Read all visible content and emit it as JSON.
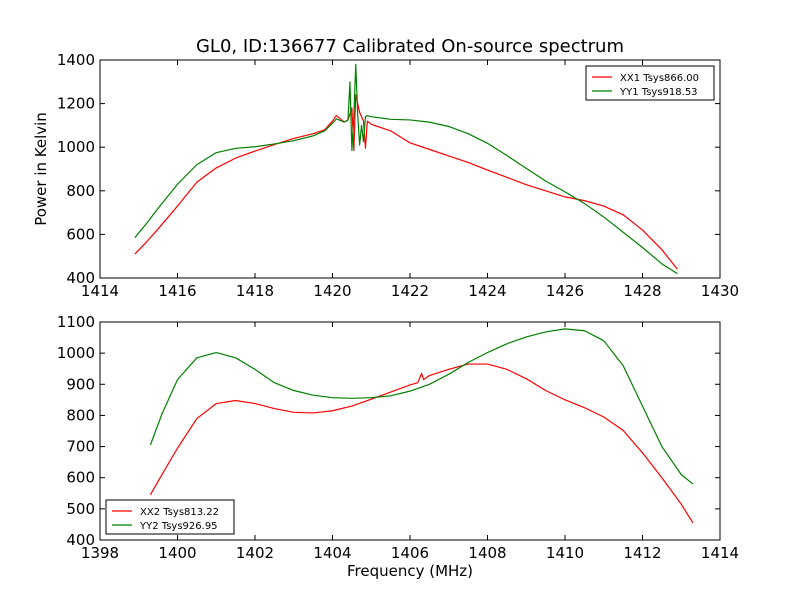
{
  "chart_data": [
    {
      "type": "line",
      "title": "GL0, ID:136677 Calibrated On-source spectrum",
      "xlabel": "",
      "ylabel": "Power in Kelvin",
      "xlim": [
        1414,
        1430
      ],
      "ylim": [
        400,
        1400
      ],
      "xticks": [
        1414,
        1416,
        1418,
        1420,
        1422,
        1424,
        1426,
        1428,
        1430
      ],
      "yticks": [
        400,
        600,
        800,
        1000,
        1200,
        1400
      ],
      "grid": false,
      "legend_position": "top-right",
      "series": [
        {
          "name": "XX1 Tsys866.00",
          "color": "#ff0000",
          "x": [
            1414.9,
            1415.2,
            1415.5,
            1416.0,
            1416.5,
            1417.0,
            1417.5,
            1418.0,
            1418.5,
            1419.0,
            1419.5,
            1419.8,
            1420.0,
            1420.1,
            1420.3,
            1420.4,
            1420.5,
            1420.55,
            1420.6,
            1420.7,
            1420.8,
            1420.85,
            1420.9,
            1421.0,
            1421.5,
            1422.0,
            1422.5,
            1423.0,
            1423.5,
            1424.0,
            1424.5,
            1425.0,
            1425.5,
            1426.0,
            1426.5,
            1427.0,
            1427.5,
            1428.0,
            1428.5,
            1428.9
          ],
          "y": [
            510,
            565,
            625,
            730,
            840,
            905,
            950,
            982,
            1012,
            1040,
            1062,
            1080,
            1120,
            1145,
            1115,
            1125,
            1180,
            985,
            1240,
            1160,
            1120,
            995,
            1120,
            1105,
            1075,
            1020,
            990,
            960,
            930,
            895,
            862,
            828,
            800,
            772,
            755,
            730,
            690,
            620,
            530,
            440
          ]
        },
        {
          "name": "YY1 Tsys918.53",
          "color": "#008000",
          "x": [
            1414.9,
            1415.2,
            1415.5,
            1416.0,
            1416.5,
            1417.0,
            1417.5,
            1418.0,
            1418.5,
            1419.0,
            1419.5,
            1419.8,
            1420.0,
            1420.1,
            1420.3,
            1420.4,
            1420.45,
            1420.5,
            1420.55,
            1420.6,
            1420.65,
            1420.7,
            1420.75,
            1420.8,
            1420.85,
            1420.9,
            1421.0,
            1421.5,
            1422.0,
            1422.5,
            1423.0,
            1423.5,
            1424.0,
            1424.5,
            1425.0,
            1425.5,
            1426.0,
            1426.5,
            1427.0,
            1427.5,
            1428.0,
            1428.5,
            1428.9
          ],
          "y": [
            585,
            650,
            720,
            830,
            920,
            975,
            995,
            1002,
            1015,
            1030,
            1052,
            1075,
            1110,
            1130,
            1115,
            1125,
            1300,
            985,
            1140,
            1380,
            1150,
            1010,
            1100,
            1025,
            1140,
            1145,
            1140,
            1128,
            1125,
            1115,
            1095,
            1062,
            1018,
            962,
            903,
            845,
            795,
            742,
            680,
            610,
            540,
            465,
            420
          ]
        }
      ]
    },
    {
      "type": "line",
      "title": "",
      "xlabel": "Frequency (MHz)",
      "ylabel": "",
      "xlim": [
        1398,
        1414
      ],
      "ylim": [
        400,
        1100
      ],
      "xticks": [
        1398,
        1400,
        1402,
        1404,
        1406,
        1408,
        1410,
        1412,
        1414
      ],
      "yticks": [
        400,
        500,
        600,
        700,
        800,
        900,
        1000,
        1100
      ],
      "grid": false,
      "legend_position": "bottom-left",
      "series": [
        {
          "name": "XX2 Tsys813.22",
          "color": "#ff0000",
          "x": [
            1399.3,
            1399.6,
            1400.0,
            1400.5,
            1401.0,
            1401.5,
            1402.0,
            1402.5,
            1403.0,
            1403.5,
            1404.0,
            1404.5,
            1405.0,
            1405.5,
            1406.0,
            1406.2,
            1406.3,
            1406.35,
            1406.5,
            1407.0,
            1407.5,
            1408.0,
            1408.5,
            1409.0,
            1409.5,
            1410.0,
            1410.5,
            1411.0,
            1411.5,
            1412.0,
            1412.5,
            1413.0,
            1413.3
          ],
          "y": [
            545,
            610,
            695,
            790,
            838,
            848,
            838,
            822,
            810,
            808,
            815,
            830,
            852,
            875,
            898,
            905,
            935,
            915,
            928,
            948,
            965,
            965,
            948,
            918,
            880,
            850,
            825,
            795,
            752,
            680,
            600,
            515,
            455
          ]
        },
        {
          "name": "YY2 Tsys926.95",
          "color": "#008000",
          "x": [
            1399.3,
            1399.6,
            1400.0,
            1400.5,
            1401.0,
            1401.5,
            1402.0,
            1402.5,
            1403.0,
            1403.5,
            1404.0,
            1404.5,
            1405.0,
            1405.5,
            1406.0,
            1406.5,
            1407.0,
            1407.5,
            1408.0,
            1408.5,
            1409.0,
            1409.5,
            1410.0,
            1410.5,
            1411.0,
            1411.5,
            1412.0,
            1412.5,
            1413.0,
            1413.3
          ],
          "y": [
            705,
            805,
            915,
            985,
            1002,
            985,
            948,
            905,
            880,
            865,
            857,
            855,
            857,
            863,
            878,
            900,
            932,
            970,
            1002,
            1030,
            1052,
            1068,
            1078,
            1072,
            1040,
            960,
            830,
            700,
            610,
            580
          ]
        }
      ]
    }
  ]
}
